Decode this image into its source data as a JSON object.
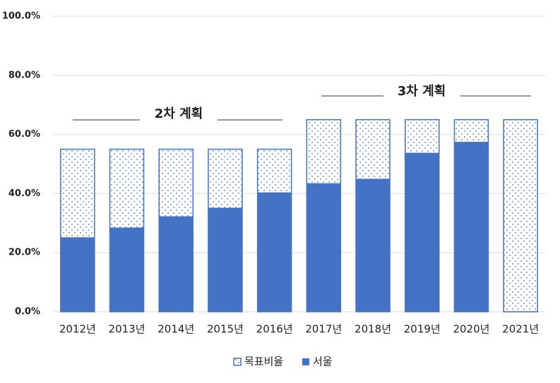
{
  "chart_data": {
    "type": "bar",
    "categories": [
      "2012년",
      "2013년",
      "2014년",
      "2015년",
      "2016년",
      "2017년",
      "2018년",
      "2019년",
      "2020년",
      "2021년"
    ],
    "series": [
      {
        "name": "목표비율",
        "color": "#4472c4",
        "values": [
          55,
          55,
          55,
          55,
          55,
          65,
          65,
          65,
          65,
          65
        ]
      },
      {
        "name": "서울",
        "color": "#4472c4",
        "values": [
          25.2,
          28.5,
          32.3,
          35.2,
          40.4,
          43.5,
          45,
          53.8,
          57.5,
          null
        ]
      }
    ],
    "ylim": [
      0,
      100
    ],
    "yticks": [
      {
        "value": 0,
        "label": "0.0%"
      },
      {
        "value": 20,
        "label": "20.0%"
      },
      {
        "value": 40,
        "label": "40.0%"
      },
      {
        "value": 60,
        "label": "60.0%"
      },
      {
        "value": 80,
        "label": "80.0%"
      },
      {
        "value": 100,
        "label": "100.0%"
      }
    ],
    "grid": true,
    "annotations": [
      "2차 계획",
      "3차 계획"
    ],
    "legend": "bottom"
  }
}
